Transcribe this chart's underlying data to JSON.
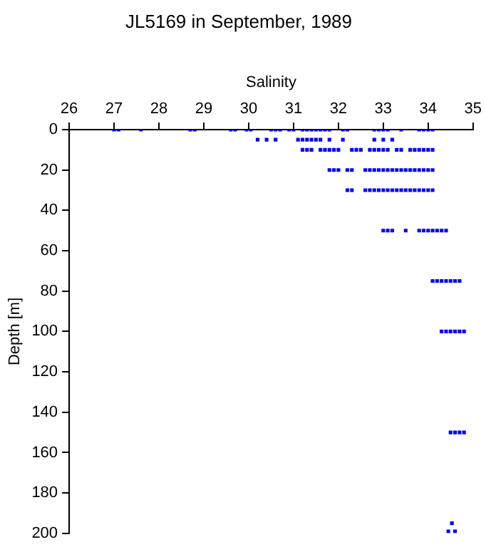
{
  "chart_data": {
    "type": "scatter",
    "title": "JL5169 in September, 1989",
    "xlabel": "Salinity",
    "ylabel": "Depth [m]",
    "xlim": [
      26,
      35
    ],
    "xticks": [
      26,
      27,
      28,
      29,
      30,
      31,
      32,
      33,
      34,
      35
    ],
    "ylim": [
      200,
      0
    ],
    "yticks": [
      0,
      20,
      40,
      60,
      80,
      100,
      120,
      140,
      160,
      180,
      200
    ],
    "grid": false,
    "legend": false,
    "marker": "square",
    "series": [
      {
        "color": "#0000ff",
        "x": [
          27.0,
          27.1,
          27.6,
          28.7,
          28.8,
          29.6,
          29.7,
          29.95,
          30.05,
          30.5,
          30.6,
          30.7,
          30.9,
          31.0,
          31.2,
          31.3,
          31.4,
          31.5,
          31.6,
          31.7,
          31.8,
          32.1,
          32.2,
          32.8,
          32.9,
          33.0,
          33.1,
          33.4,
          33.8,
          33.9,
          34.0,
          34.1
        ],
        "values": [
          0,
          0,
          0,
          0,
          0,
          0,
          0,
          0,
          0,
          0,
          0,
          0,
          0,
          0,
          0,
          0,
          0,
          0,
          0,
          0,
          0,
          0,
          0,
          0,
          0,
          0,
          0,
          0,
          0,
          0,
          0,
          0
        ]
      },
      {
        "color": "#0000ff",
        "x": [
          30.2,
          30.4,
          30.6,
          31.1,
          31.2,
          31.3,
          31.4,
          31.5,
          31.6,
          31.8,
          32.1,
          32.8,
          33.0,
          33.2
        ],
        "values": [
          5,
          5,
          5,
          5,
          5,
          5,
          5,
          5,
          5,
          5,
          5,
          5,
          5,
          5
        ]
      },
      {
        "color": "#0000ff",
        "x": [
          31.2,
          31.3,
          31.4,
          31.6,
          31.7,
          31.8,
          31.9,
          32.0,
          32.3,
          32.4,
          32.5,
          32.7,
          32.8,
          32.9,
          33.0,
          33.1,
          33.3,
          33.4,
          33.6,
          33.7,
          33.8,
          33.9,
          34.0,
          34.1
        ],
        "values": [
          10,
          10,
          10,
          10,
          10,
          10,
          10,
          10,
          10,
          10,
          10,
          10,
          10,
          10,
          10,
          10,
          10,
          10,
          10,
          10,
          10,
          10,
          10,
          10
        ]
      },
      {
        "color": "#0000ff",
        "x": [
          31.8,
          31.9,
          32.0,
          32.2,
          32.3,
          32.6,
          32.7,
          32.8,
          32.9,
          33.0,
          33.1,
          33.2,
          33.3,
          33.4,
          33.5,
          33.6,
          33.7,
          33.8,
          33.9,
          34.0,
          34.1
        ],
        "values": [
          20,
          20,
          20,
          20,
          20,
          20,
          20,
          20,
          20,
          20,
          20,
          20,
          20,
          20,
          20,
          20,
          20,
          20,
          20,
          20,
          20
        ]
      },
      {
        "color": "#0000ff",
        "x": [
          32.2,
          32.3,
          32.6,
          32.7,
          32.8,
          32.9,
          33.0,
          33.1,
          33.2,
          33.3,
          33.4,
          33.5,
          33.6,
          33.7,
          33.8,
          33.9,
          34.0,
          34.1
        ],
        "values": [
          30,
          30,
          30,
          30,
          30,
          30,
          30,
          30,
          30,
          30,
          30,
          30,
          30,
          30,
          30,
          30,
          30,
          30
        ]
      },
      {
        "color": "#0000ff",
        "x": [
          33.0,
          33.1,
          33.2,
          33.5,
          33.8,
          33.9,
          34.0,
          34.1,
          34.2,
          34.3,
          34.4
        ],
        "values": [
          50,
          50,
          50,
          50,
          50,
          50,
          50,
          50,
          50,
          50,
          50
        ]
      },
      {
        "color": "#0000ff",
        "x": [
          34.1,
          34.2,
          34.3,
          34.4,
          34.5,
          34.6,
          34.7
        ],
        "values": [
          75,
          75,
          75,
          75,
          75,
          75,
          75
        ]
      },
      {
        "color": "#0000ff",
        "x": [
          34.3,
          34.4,
          34.5,
          34.6,
          34.7,
          34.8
        ],
        "values": [
          100,
          100,
          100,
          100,
          100,
          100
        ]
      },
      {
        "color": "#0000ff",
        "x": [
          34.5,
          34.6,
          34.7,
          34.8
        ],
        "values": [
          150,
          150,
          150,
          150
        ]
      },
      {
        "color": "#0000ff",
        "x": [
          34.45,
          34.6,
          34.53
        ],
        "values": [
          199,
          199,
          195
        ]
      }
    ]
  }
}
